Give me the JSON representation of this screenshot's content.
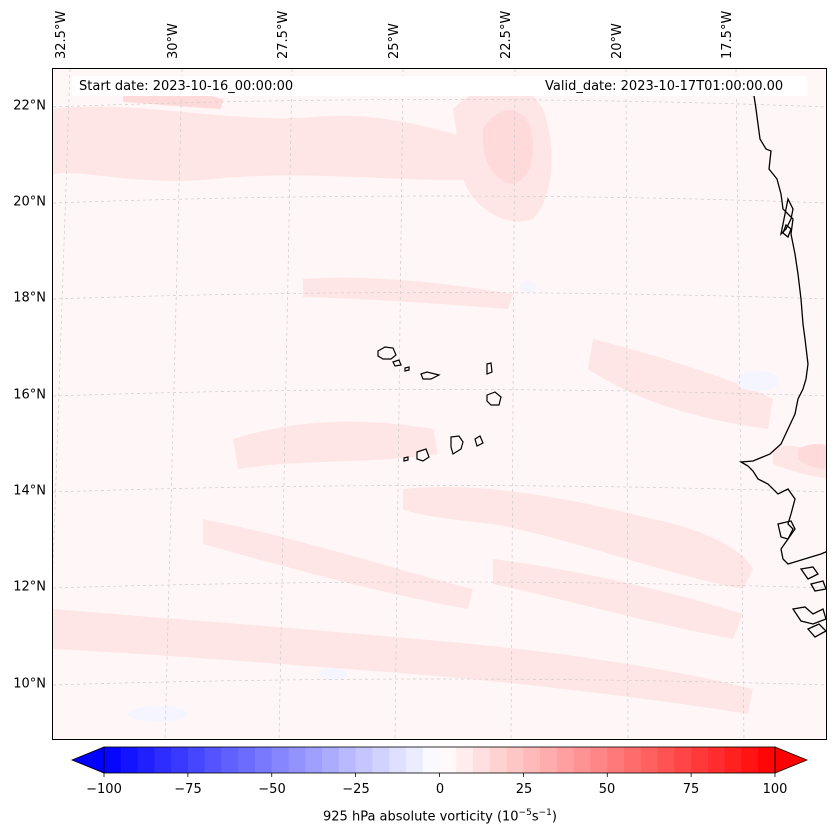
{
  "header": {
    "start_date": "Start date: 2023-10-16_00:00:00",
    "valid_date": "Valid_date: 2023-10-17T01:00:00.00"
  },
  "lat_labels": [
    "22°N",
    "20°N",
    "18°N",
    "16°N",
    "14°N",
    "12°N",
    "10°N"
  ],
  "lon_labels": [
    "32.5°W",
    "30°W",
    "27.5°W",
    "25°W",
    "22.5°W",
    "20°W",
    "17.5°W"
  ],
  "colorbar": {
    "label_main": "925 hPa absolute vorticity (10",
    "label_exp1": "−5",
    "label_s": "s",
    "label_exp2": "−1",
    "label_close": ")",
    "ticks": [
      "−100",
      "−75",
      "−50",
      "−25",
      "0",
      "25",
      "50",
      "75",
      "100"
    ],
    "min": -100,
    "max": 100,
    "min_color": "#0000ff",
    "mid_color": "#ffffff",
    "max_color": "#ff0000"
  },
  "colors": {
    "coast": "#000000",
    "grid": "#cccccc",
    "field_base": "#fff7f7",
    "field_pos": "#ffdada"
  }
}
